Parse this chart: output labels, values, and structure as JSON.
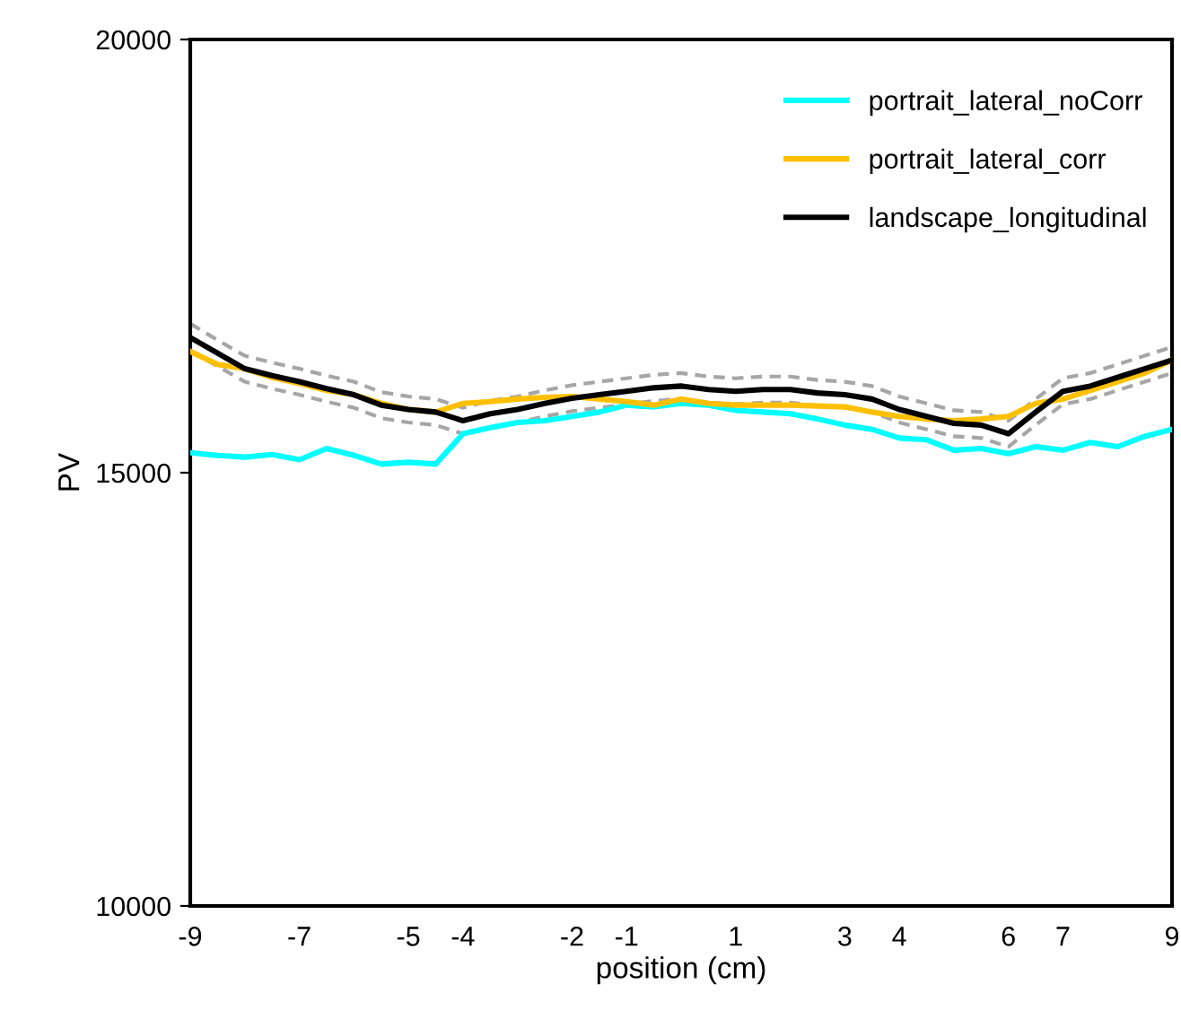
{
  "chart_data": {
    "type": "line",
    "xlabel": "position (cm)",
    "ylabel": "PV",
    "x": [
      -9,
      -8.5,
      -8,
      -7.5,
      -7,
      -6.5,
      -6,
      -5.5,
      -5,
      -4.5,
      -4,
      -3.5,
      -3,
      -2.5,
      -2,
      -1.5,
      -1,
      -0.5,
      0,
      0.5,
      1,
      1.5,
      2,
      2.5,
      3,
      3.5,
      4,
      4.5,
      5,
      5.5,
      6,
      6.5,
      7,
      7.5,
      8,
      8.5,
      9
    ],
    "series": [
      {
        "name": "portrait_lateral_noCorr",
        "color": "#00ffff",
        "values": [
          15230,
          15200,
          15180,
          15210,
          15150,
          15280,
          15200,
          15100,
          15120,
          15100,
          15450,
          15520,
          15580,
          15600,
          15650,
          15700,
          15780,
          15760,
          15800,
          15780,
          15720,
          15700,
          15680,
          15620,
          15550,
          15500,
          15400,
          15380,
          15260,
          15280,
          15220,
          15300,
          15260,
          15350,
          15300,
          15420,
          15500
        ]
      },
      {
        "name": "portrait_lateral_corr",
        "color": "#ffc000",
        "values": [
          16400,
          16250,
          16200,
          16100,
          16030,
          15950,
          15900,
          15800,
          15730,
          15700,
          15800,
          15820,
          15850,
          15870,
          15880,
          15850,
          15820,
          15780,
          15850,
          15800,
          15780,
          15780,
          15780,
          15770,
          15760,
          15700,
          15650,
          15620,
          15600,
          15620,
          15650,
          15800,
          15850,
          15950,
          16050,
          16150,
          16300
        ]
      },
      {
        "color": "#a6a6a6",
        "line_style": "dashed",
        "values": [
          16400,
          16230,
          16050,
          15970,
          15900,
          15820,
          15750,
          15630,
          15580,
          15550,
          15450,
          15530,
          15580,
          15650,
          15710,
          15750,
          15790,
          15830,
          15850,
          15810,
          15790,
          15810,
          15810,
          15770,
          15750,
          15700,
          15580,
          15500,
          15420,
          15400,
          15300,
          15550,
          15790,
          15850,
          15950,
          16050,
          16150
        ]
      },
      {
        "color": "#a6a6a6",
        "line_style": "dashed",
        "values": [
          16720,
          16530,
          16350,
          16270,
          16200,
          16120,
          16050,
          15930,
          15880,
          15850,
          15750,
          15830,
          15880,
          15950,
          16010,
          16050,
          16090,
          16130,
          16150,
          16110,
          16090,
          16110,
          16110,
          16070,
          16050,
          16000,
          15880,
          15800,
          15720,
          15700,
          15600,
          15850,
          16090,
          16150,
          16250,
          16350,
          16450
        ]
      },
      {
        "name": "landscape_longitudinal",
        "color": "#000000",
        "values": [
          16560,
          16380,
          16200,
          16120,
          16050,
          15970,
          15900,
          15780,
          15730,
          15700,
          15600,
          15680,
          15730,
          15800,
          15860,
          15900,
          15940,
          15980,
          16000,
          15960,
          15940,
          15960,
          15960,
          15920,
          15900,
          15850,
          15730,
          15650,
          15570,
          15550,
          15450,
          15700,
          15940,
          16000,
          16100,
          16200,
          16300
        ]
      }
    ],
    "xlim": [
      -9,
      9
    ],
    "xticks": [
      -9,
      -7,
      -5,
      -4,
      -2,
      -1,
      1,
      3,
      4,
      6,
      7,
      9
    ],
    "ylim": [
      10000,
      20000
    ],
    "yticks": [
      10000,
      15000,
      20000
    ],
    "grid": false,
    "legend": "top right",
    "marker": "none",
    "line_style": "solid"
  }
}
